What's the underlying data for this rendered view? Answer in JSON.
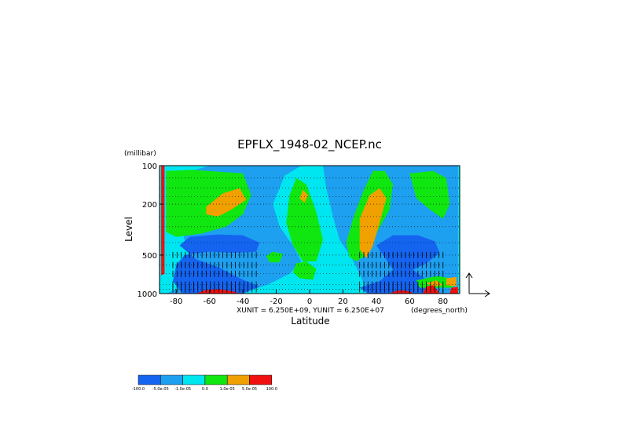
{
  "chart_data": {
    "type": "heatmap",
    "title": "EPFLX_1948-02_NCEP.nc",
    "ylabel": "Level",
    "yunit": "(millibar)",
    "xlabel": "Latitude",
    "xunit": "(degrees_north)",
    "vector_scale_note": "XUNIT = 6.250E+09, YUNIT = 6.250E+07",
    "y_scale": "log",
    "y_reversed": true,
    "xlim": [
      -90,
      90
    ],
    "ylim": [
      100,
      1000
    ],
    "x_ticks": [
      {
        "value": -80,
        "label": "-80"
      },
      {
        "value": -60,
        "label": "-60"
      },
      {
        "value": -40,
        "label": "-40"
      },
      {
        "value": -20,
        "label": "-20"
      },
      {
        "value": 0,
        "label": "0"
      },
      {
        "value": 20,
        "label": "20"
      },
      {
        "value": 40,
        "label": "40"
      },
      {
        "value": 60,
        "label": "60"
      },
      {
        "value": 80,
        "label": "80"
      }
    ],
    "y_ticks": [
      {
        "value": 100,
        "label": "100"
      },
      {
        "value": 200,
        "label": "200"
      },
      {
        "value": 500,
        "label": "500"
      },
      {
        "value": 1000,
        "label": "1000"
      }
    ],
    "colorbar": {
      "colors": [
        "#1464f0",
        "#1ea0f0",
        "#00e6f0",
        "#10e610",
        "#f0a000",
        "#f01010"
      ],
      "labels": [
        "-100.0",
        "-5.0e-05",
        "-1.0e-05",
        "0.0",
        "1.0e-05",
        "5.0e-05",
        "100.0"
      ]
    },
    "contour_regions": [
      {
        "level": 0,
        "color": "#1ea0f0",
        "points": [
          [
            -86,
            150
          ],
          [
            -80,
            200
          ],
          [
            -75,
            380
          ],
          [
            -70,
            650
          ],
          [
            -78,
            900
          ],
          [
            -86,
            1000
          ],
          [
            -60,
            1000
          ],
          [
            -38,
            960
          ],
          [
            -25,
            850
          ],
          [
            -12,
            700
          ],
          [
            -5,
            560
          ],
          [
            -10,
            420
          ],
          [
            -18,
            300
          ],
          [
            -22,
            200
          ],
          [
            -15,
            120
          ],
          [
            -5,
            100
          ],
          [
            -60,
            100
          ],
          [
            -80,
            120
          ]
        ]
      },
      {
        "level": 1,
        "color": "#1ea0f0",
        "points": [
          [
            8,
            100
          ],
          [
            10,
            150
          ],
          [
            14,
            250
          ],
          [
            18,
            380
          ],
          [
            25,
            520
          ],
          [
            30,
            700
          ],
          [
            35,
            1000
          ],
          [
            89,
            1000
          ],
          [
            89,
            100
          ]
        ]
      },
      {
        "level": 0,
        "color": "#1464f0",
        "points": [
          [
            -78,
            420
          ],
          [
            -72,
            360
          ],
          [
            -55,
            345
          ],
          [
            -40,
            350
          ],
          [
            -30,
            400
          ],
          [
            -32,
            470
          ],
          [
            -45,
            480
          ],
          [
            -60,
            470
          ],
          [
            -75,
            500
          ],
          [
            -80,
            600
          ],
          [
            -82,
            800
          ],
          [
            -76,
            1000
          ],
          [
            -40,
            1000
          ],
          [
            -30,
            880
          ],
          [
            -40,
            780
          ],
          [
            -55,
            620
          ],
          [
            -68,
            540
          ]
        ]
      },
      {
        "level": 1,
        "color": "#1464f0",
        "points": [
          [
            40,
            420
          ],
          [
            50,
            350
          ],
          [
            65,
            350
          ],
          [
            75,
            390
          ],
          [
            78,
            480
          ],
          [
            70,
            580
          ],
          [
            62,
            650
          ],
          [
            70,
            780
          ],
          [
            74,
            1000
          ],
          [
            35,
            1000
          ],
          [
            30,
            900
          ],
          [
            42,
            800
          ],
          [
            50,
            650
          ],
          [
            45,
            520
          ]
        ]
      },
      {
        "level": 0,
        "color": "#10e610",
        "points": [
          [
            -86,
            110
          ],
          [
            -86,
            330
          ],
          [
            -80,
            360
          ],
          [
            -65,
            340
          ],
          [
            -50,
            300
          ],
          [
            -40,
            240
          ],
          [
            -35,
            170
          ],
          [
            -40,
            115
          ],
          [
            -70,
            108
          ]
        ]
      },
      {
        "level": 1,
        "color": "#10e610",
        "points": [
          [
            -12,
            170
          ],
          [
            -8,
            125
          ],
          [
            -2,
            140
          ],
          [
            4,
            230
          ],
          [
            8,
            380
          ],
          [
            4,
            560
          ],
          [
            -4,
            560
          ],
          [
            -10,
            420
          ],
          [
            -14,
            280
          ]
        ]
      },
      {
        "level": 2,
        "color": "#10e610",
        "points": [
          [
            22,
            400
          ],
          [
            26,
            260
          ],
          [
            32,
            160
          ],
          [
            38,
            110
          ],
          [
            45,
            110
          ],
          [
            50,
            140
          ],
          [
            48,
            220
          ],
          [
            40,
            340
          ],
          [
            34,
            500
          ],
          [
            28,
            560
          ],
          [
            24,
            520
          ]
        ]
      },
      {
        "level": 3,
        "color": "#10e610",
        "points": [
          [
            60,
            115
          ],
          [
            74,
            110
          ],
          [
            82,
            125
          ],
          [
            84,
            200
          ],
          [
            80,
            260
          ],
          [
            72,
            220
          ],
          [
            64,
            180
          ]
        ]
      },
      {
        "level": 4,
        "color": "#10e610",
        "points": [
          [
            -26,
            510
          ],
          [
            -22,
            470
          ],
          [
            -16,
            490
          ],
          [
            -18,
            570
          ],
          [
            -24,
            570
          ]
        ]
      },
      {
        "level": 5,
        "color": "#10e610",
        "points": [
          [
            -8,
            580
          ],
          [
            -2,
            560
          ],
          [
            4,
            640
          ],
          [
            2,
            780
          ],
          [
            -6,
            760
          ],
          [
            -10,
            680
          ]
        ]
      },
      {
        "level": 6,
        "color": "#10e610",
        "points": [
          [
            64,
            790
          ],
          [
            76,
            730
          ],
          [
            86,
            760
          ],
          [
            86,
            900
          ],
          [
            66,
            900
          ]
        ]
      },
      {
        "level": 0,
        "color": "#f0a000",
        "points": [
          [
            -62,
            210
          ],
          [
            -52,
            165
          ],
          [
            -42,
            150
          ],
          [
            -38,
            185
          ],
          [
            -48,
            225
          ],
          [
            -55,
            250
          ],
          [
            -62,
            240
          ]
        ]
      },
      {
        "level": 1,
        "color": "#f0a000",
        "points": [
          [
            -6,
            180
          ],
          [
            -4,
            155
          ],
          [
            -1,
            170
          ],
          [
            -3,
            195
          ]
        ]
      },
      {
        "level": 2,
        "color": "#f0a000",
        "points": [
          [
            30,
            260
          ],
          [
            36,
            170
          ],
          [
            42,
            150
          ],
          [
            46,
            180
          ],
          [
            42,
            280
          ],
          [
            38,
            420
          ],
          [
            34,
            530
          ],
          [
            30,
            450
          ]
        ]
      },
      {
        "level": 3,
        "color": "#f0a000",
        "points": [
          [
            70,
            830
          ],
          [
            76,
            790
          ],
          [
            80,
            860
          ],
          [
            74,
            880
          ]
        ]
      },
      {
        "level": 4,
        "color": "#f0a000",
        "points": [
          [
            82,
            760
          ],
          [
            88,
            740
          ],
          [
            88,
            880
          ],
          [
            82,
            860
          ]
        ]
      },
      {
        "level": 0,
        "color": "#f01010",
        "points": [
          [
            -68,
            1000
          ],
          [
            -62,
            935
          ],
          [
            -54,
            925
          ],
          [
            -46,
            960
          ],
          [
            -42,
            1000
          ]
        ]
      },
      {
        "level": 1,
        "color": "#f01010",
        "points": [
          [
            48,
            1000
          ],
          [
            52,
            950
          ],
          [
            57,
            945
          ],
          [
            61,
            975
          ],
          [
            62,
            1000
          ]
        ]
      },
      {
        "level": 2,
        "color": "#f01010",
        "points": [
          [
            68,
            1000
          ],
          [
            70,
            880
          ],
          [
            74,
            860
          ],
          [
            76,
            920
          ],
          [
            78,
            1000
          ]
        ]
      },
      {
        "level": 3,
        "color": "#f01010",
        "points": [
          [
            84,
            1000
          ],
          [
            85,
            900
          ],
          [
            89,
            890
          ],
          [
            89,
            1000
          ]
        ]
      },
      {
        "level": 4,
        "color": "#f01010",
        "points": [
          [
            -89,
            100
          ],
          [
            -87,
            100
          ],
          [
            -87,
            700
          ],
          [
            -89,
            720
          ]
        ]
      }
    ],
    "vector_regions": [
      {
        "lat_range": [
          -82,
          -30
        ],
        "level_range": [
          480,
          1000
        ]
      },
      {
        "lat_range": [
          30,
          80
        ],
        "level_range": [
          430,
          1000
        ]
      }
    ]
  }
}
